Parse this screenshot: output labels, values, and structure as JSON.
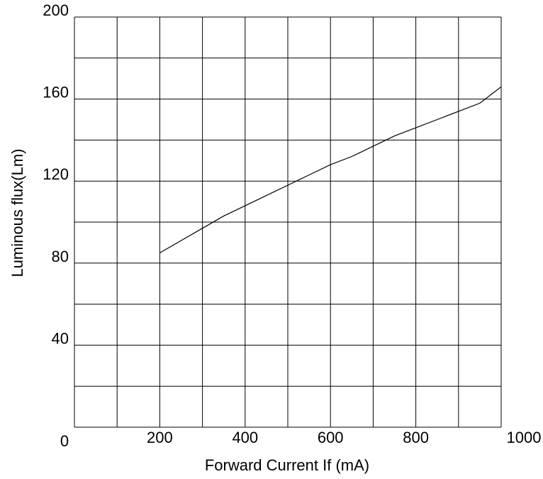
{
  "chart_data": {
    "type": "line",
    "title": "",
    "xlabel": "Forward Current  If (mA)",
    "ylabel": "Luminous flux(Lm)",
    "xlim": [
      0,
      1000
    ],
    "ylim": [
      0,
      200
    ],
    "x_ticks": [
      0,
      200,
      400,
      600,
      800,
      1000
    ],
    "y_ticks": [
      0,
      40,
      80,
      120,
      160,
      200
    ],
    "x_tick_labels": [
      "0",
      "200",
      "400",
      "600",
      "800",
      "1000"
    ],
    "y_tick_labels": [
      "",
      "40",
      "80",
      "120",
      "160",
      "200"
    ],
    "x_grid_lines": 10,
    "y_grid_lines": 10,
    "grid": true,
    "legend": "none",
    "series": [
      {
        "x": [
          200,
          250,
          300,
          350,
          400,
          450,
          500,
          550,
          600,
          650,
          700,
          750,
          800,
          850,
          900,
          950,
          1000
        ],
        "y": [
          85,
          91,
          97,
          103,
          108,
          113,
          118,
          123,
          128,
          132,
          137,
          142,
          146,
          150,
          154,
          158,
          166
        ],
        "color": "#000000"
      }
    ],
    "colors": {
      "line": "#000000",
      "grid": "#000000"
    }
  }
}
